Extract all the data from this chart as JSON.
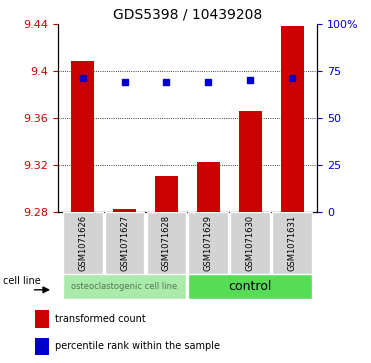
{
  "title": "GDS5398 / 10439208",
  "samples": [
    "GSM1071626",
    "GSM1071627",
    "GSM1071628",
    "GSM1071629",
    "GSM1071630",
    "GSM1071631"
  ],
  "transformed_counts": [
    9.408,
    9.283,
    9.311,
    9.323,
    9.366,
    9.438
  ],
  "percentile_ranks": [
    71,
    69,
    69,
    69,
    70,
    71
  ],
  "ylim": [
    9.28,
    9.44
  ],
  "yticks": [
    9.28,
    9.32,
    9.36,
    9.4,
    9.44
  ],
  "ytick_labels": [
    "9.28",
    "9.32",
    "9.36",
    "9.4",
    "9.44"
  ],
  "right_yticks": [
    0,
    25,
    50,
    75,
    100
  ],
  "right_ytick_labels": [
    "0",
    "25",
    "50",
    "75",
    "100%"
  ],
  "right_ylim": [
    0,
    100
  ],
  "bar_color": "#cc0000",
  "dot_color": "#0000cc",
  "group0_label": "osteoclastogenic cell line",
  "group1_label": "control",
  "group0_color": "#aaeaaa",
  "group1_color": "#55dd55",
  "group0_text_color": "#557755",
  "group1_text_color": "#000000",
  "sample_box_color": "#d3d3d3",
  "cell_line_label": "cell line",
  "legend_bar": "transformed count",
  "legend_dot": "percentile rank within the sample",
  "left_label_color": "#cc0000",
  "right_label_color": "#0000cc",
  "grid_yticks": [
    9.32,
    9.36,
    9.4
  ]
}
